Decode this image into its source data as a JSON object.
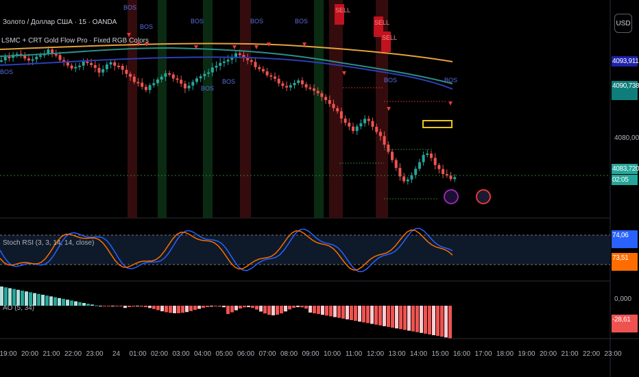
{
  "header": {
    "symbol_line": "Золото / Доллар США · 15 · OANDA",
    "indicator_line": "LSMC + CRT Gold Flow Pro · Fixed RGB Colors"
  },
  "currency": "USD",
  "main_price_axis": [
    "4080,000"
  ],
  "main_price_badges": [
    {
      "text": "4093,911",
      "color": "#1e22aa"
    },
    {
      "text": "4090,738",
      "color": "#0f7d7a"
    },
    {
      "text": "4083,720",
      "color": "#26a69a"
    },
    {
      "text": "02:05",
      "color": "#26a69a"
    }
  ],
  "stoch": {
    "title": "Stoch RSI (3, 3, 14, 14, close)",
    "badges": [
      {
        "text": "74,06",
        "color": "#2962ff"
      },
      {
        "text": "73,51",
        "color": "#ff6d00"
      }
    ]
  },
  "ao": {
    "title": "AO (5, 34)",
    "axis": "0,000",
    "badge": {
      "text": "-28,61",
      "color": "#ef5350"
    }
  },
  "time_axis": [
    "19:00",
    "20:00",
    "21:00",
    "22:00",
    "23:00",
    "24",
    "01:00",
    "02:00",
    "03:00",
    "04:00",
    "05:00",
    "06:00",
    "07:00",
    "08:00",
    "09:00",
    "10:00",
    "11:00",
    "12:00",
    "13:00",
    "14:00",
    "15:00",
    "16:00",
    "17:00",
    "18:00",
    "19:00",
    "20:00",
    "21:00",
    "22:00",
    "23:00"
  ],
  "chart_labels": {
    "bos": "BOS",
    "sell": "SELL"
  },
  "colors": {
    "bull": "#26a69a",
    "bear": "#ef5350",
    "ema_orange": "#e8a33c",
    "ema_blue": "#2b3fb8",
    "ema_teal": "#2b8f8a",
    "stoch_k": "#2962ff",
    "stoch_d": "#ff6d00"
  }
}
